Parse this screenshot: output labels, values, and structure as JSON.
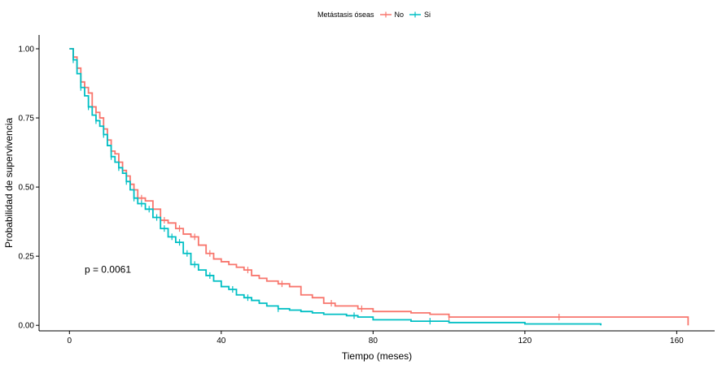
{
  "chart_data": {
    "type": "line",
    "chart_kind": "kaplan-meier",
    "title": "",
    "xlabel": "Tiempo (meses)",
    "ylabel": "Probabilidad de supervivencia",
    "xlim": [
      -8,
      170
    ],
    "ylim": [
      -0.02,
      1.05
    ],
    "x_ticks": [
      0,
      40,
      80,
      120,
      160
    ],
    "y_ticks": [
      0.0,
      0.25,
      0.5,
      0.75,
      1.0
    ],
    "y_tick_labels": [
      "0.00",
      "0.25",
      "0.50",
      "0.75",
      "1.00"
    ],
    "annotation": "p = 0.0061",
    "annotation_position": {
      "x": 4,
      "y": 0.19
    },
    "grid": false,
    "legend": {
      "title": "Metástasis óseas",
      "position": "top"
    },
    "series": [
      {
        "name": "No",
        "color": "#F8766D",
        "x": [
          0,
          1,
          2,
          3,
          4,
          5,
          6,
          7,
          8,
          9,
          10,
          11,
          12,
          13,
          14,
          15,
          16,
          17,
          18,
          20,
          22,
          24,
          26,
          28,
          30,
          32,
          34,
          36,
          38,
          40,
          42,
          44,
          46,
          48,
          50,
          52,
          55,
          58,
          61,
          64,
          67,
          70,
          73,
          76,
          80,
          85,
          90,
          95,
          100,
          110,
          120,
          130,
          140,
          150,
          160,
          163
        ],
        "y": [
          1.0,
          0.97,
          0.93,
          0.88,
          0.86,
          0.84,
          0.79,
          0.77,
          0.75,
          0.71,
          0.67,
          0.63,
          0.62,
          0.59,
          0.56,
          0.54,
          0.51,
          0.49,
          0.46,
          0.45,
          0.42,
          0.38,
          0.37,
          0.35,
          0.33,
          0.32,
          0.29,
          0.26,
          0.24,
          0.23,
          0.22,
          0.21,
          0.2,
          0.18,
          0.17,
          0.16,
          0.15,
          0.14,
          0.11,
          0.1,
          0.08,
          0.07,
          0.07,
          0.06,
          0.05,
          0.05,
          0.045,
          0.04,
          0.03,
          0.03,
          0.03,
          0.03,
          0.03,
          0.03,
          0.03,
          0.0
        ],
        "censored_x": [
          1,
          2,
          4,
          7,
          9,
          13,
          16,
          19,
          25,
          29,
          33,
          37,
          47,
          56,
          69,
          77,
          100,
          129
        ]
      },
      {
        "name": "Si",
        "color": "#00BFC4",
        "x": [
          0,
          1,
          2,
          3,
          4,
          5,
          6,
          7,
          8,
          9,
          10,
          11,
          12,
          13,
          14,
          15,
          16,
          17,
          18,
          20,
          22,
          24,
          26,
          28,
          30,
          32,
          34,
          36,
          38,
          40,
          42,
          44,
          46,
          48,
          50,
          52,
          55,
          58,
          61,
          64,
          67,
          70,
          73,
          76,
          80,
          85,
          90,
          95,
          100,
          110,
          120,
          130,
          140
        ],
        "y": [
          1.0,
          0.96,
          0.91,
          0.86,
          0.83,
          0.79,
          0.76,
          0.74,
          0.72,
          0.69,
          0.65,
          0.61,
          0.59,
          0.57,
          0.55,
          0.52,
          0.49,
          0.46,
          0.44,
          0.42,
          0.39,
          0.35,
          0.32,
          0.3,
          0.26,
          0.22,
          0.2,
          0.18,
          0.16,
          0.14,
          0.13,
          0.11,
          0.1,
          0.09,
          0.08,
          0.07,
          0.06,
          0.055,
          0.05,
          0.045,
          0.04,
          0.04,
          0.035,
          0.03,
          0.02,
          0.02,
          0.015,
          0.015,
          0.01,
          0.01,
          0.005,
          0.005,
          0.0
        ],
        "censored_x": [
          1,
          3,
          5,
          7,
          9,
          11,
          13,
          15,
          17,
          19,
          21,
          23,
          25,
          27,
          29,
          31,
          33,
          37,
          43,
          47,
          55,
          75,
          95
        ]
      }
    ]
  }
}
